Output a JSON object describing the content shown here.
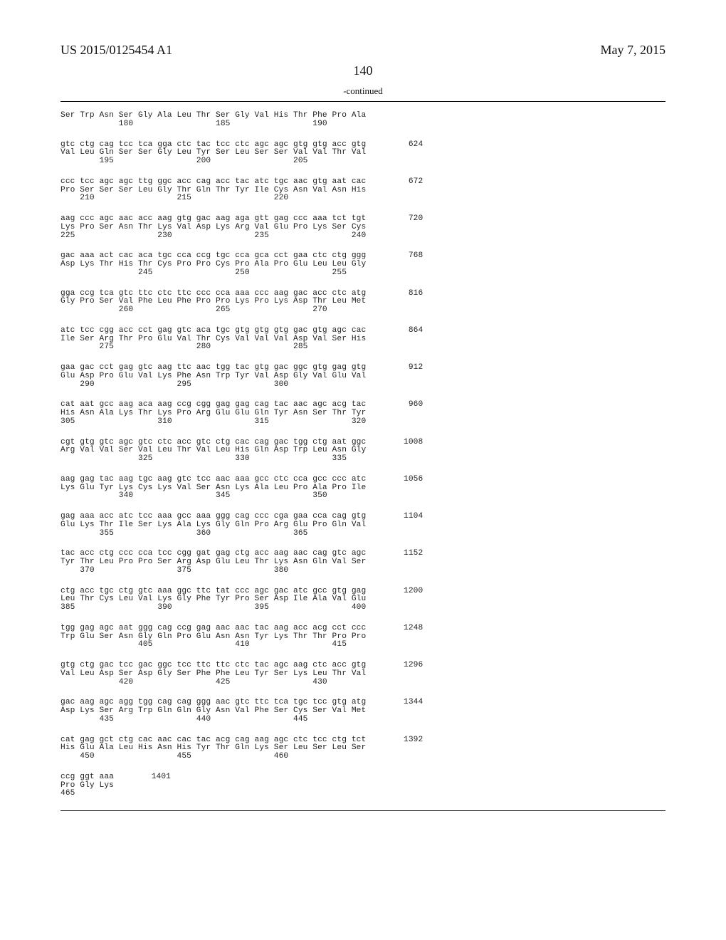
{
  "header": {
    "patent_no": "US 2015/0125454 A1",
    "date": "May 7, 2015"
  },
  "page_number": "140",
  "continued_label": "-continued",
  "font": {
    "body_family": "Times New Roman",
    "seq_family": "Courier New",
    "header_fontsize_pt": 14,
    "pagenum_fontsize_pt": 14,
    "continued_fontsize_pt": 10,
    "seq_fontsize_pt": 8
  },
  "colors": {
    "background": "#ffffff",
    "text": "#111111",
    "rule": "#000000"
  },
  "blocks": [
    {
      "codon": "",
      "amino": "Ser Trp Asn Ser Gly Ala Leu Thr Ser Gly Val His Thr Phe Pro Ala",
      "positions": "            180                 185                 190",
      "right_num": ""
    },
    {
      "codon": "gtc ctg cag tcc tca gga ctc tac tcc ctc agc agc gtg gtg acc gtg",
      "amino": "Val Leu Gln Ser Ser Gly Leu Tyr Ser Leu Ser Ser Val Val Thr Val",
      "positions": "        195                 200                 205",
      "right_num": "624"
    },
    {
      "codon": "ccc tcc agc agc ttg ggc acc cag acc tac atc tgc aac gtg aat cac",
      "amino": "Pro Ser Ser Ser Leu Gly Thr Gln Thr Tyr Ile Cys Asn Val Asn His",
      "positions": "    210                 215                 220",
      "right_num": "672"
    },
    {
      "codon": "aag ccc agc aac acc aag gtg gac aag aga gtt gag ccc aaa tct tgt",
      "amino": "Lys Pro Ser Asn Thr Lys Val Asp Lys Arg Val Glu Pro Lys Ser Cys",
      "positions": "225                 230                 235                 240",
      "right_num": "720"
    },
    {
      "codon": "gac aaa act cac aca tgc cca ccg tgc cca gca cct gaa ctc ctg ggg",
      "amino": "Asp Lys Thr His Thr Cys Pro Pro Cys Pro Ala Pro Glu Leu Leu Gly",
      "positions": "                245                 250                 255",
      "right_num": "768"
    },
    {
      "codon": "gga ccg tca gtc ttc ctc ttc ccc cca aaa ccc aag gac acc ctc atg",
      "amino": "Gly Pro Ser Val Phe Leu Phe Pro Pro Lys Pro Lys Asp Thr Leu Met",
      "positions": "            260                 265                 270",
      "right_num": "816"
    },
    {
      "codon": "atc tcc cgg acc cct gag gtc aca tgc gtg gtg gtg gac gtg agc cac",
      "amino": "Ile Ser Arg Thr Pro Glu Val Thr Cys Val Val Val Asp Val Ser His",
      "positions": "        275                 280                 285",
      "right_num": "864"
    },
    {
      "codon": "gaa gac cct gag gtc aag ttc aac tgg tac gtg gac ggc gtg gag gtg",
      "amino": "Glu Asp Pro Glu Val Lys Phe Asn Trp Tyr Val Asp Gly Val Glu Val",
      "positions": "    290                 295                 300",
      "right_num": "912"
    },
    {
      "codon": "cat aat gcc aag aca aag ccg cgg gag gag cag tac aac agc acg tac",
      "amino": "His Asn Ala Lys Thr Lys Pro Arg Glu Glu Gln Tyr Asn Ser Thr Tyr",
      "positions": "305                 310                 315                 320",
      "right_num": "960"
    },
    {
      "codon": "cgt gtg gtc agc gtc ctc acc gtc ctg cac cag gac tgg ctg aat ggc",
      "amino": "Arg Val Val Ser Val Leu Thr Val Leu His Gln Asp Trp Leu Asn Gly",
      "positions": "                325                 330                 335",
      "right_num": "1008"
    },
    {
      "codon": "aag gag tac aag tgc aag gtc tcc aac aaa gcc ctc cca gcc ccc atc",
      "amino": "Lys Glu Tyr Lys Cys Lys Val Ser Asn Lys Ala Leu Pro Ala Pro Ile",
      "positions": "            340                 345                 350",
      "right_num": "1056"
    },
    {
      "codon": "gag aaa acc atc tcc aaa gcc aaa ggg cag ccc cga gaa cca cag gtg",
      "amino": "Glu Lys Thr Ile Ser Lys Ala Lys Gly Gln Pro Arg Glu Pro Gln Val",
      "positions": "        355                 360                 365",
      "right_num": "1104"
    },
    {
      "codon": "tac acc ctg ccc cca tcc cgg gat gag ctg acc aag aac cag gtc agc",
      "amino": "Tyr Thr Leu Pro Pro Ser Arg Asp Glu Leu Thr Lys Asn Gln Val Ser",
      "positions": "    370                 375                 380",
      "right_num": "1152"
    },
    {
      "codon": "ctg acc tgc ctg gtc aaa ggc ttc tat ccc agc gac atc gcc gtg gag",
      "amino": "Leu Thr Cys Leu Val Lys Gly Phe Tyr Pro Ser Asp Ile Ala Val Glu",
      "positions": "385                 390                 395                 400",
      "right_num": "1200"
    },
    {
      "codon": "tgg gag agc aat ggg cag ccg gag aac aac tac aag acc acg cct ccc",
      "amino": "Trp Glu Ser Asn Gly Gln Pro Glu Asn Asn Tyr Lys Thr Thr Pro Pro",
      "positions": "                405                 410                 415",
      "right_num": "1248"
    },
    {
      "codon": "gtg ctg gac tcc gac ggc tcc ttc ttc ctc tac agc aag ctc acc gtg",
      "amino": "Val Leu Asp Ser Asp Gly Ser Phe Phe Leu Tyr Ser Lys Leu Thr Val",
      "positions": "            420                 425                 430",
      "right_num": "1296"
    },
    {
      "codon": "gac aag agc agg tgg cag cag ggg aac gtc ttc tca tgc tcc gtg atg",
      "amino": "Asp Lys Ser Arg Trp Gln Gln Gly Asn Val Phe Ser Cys Ser Val Met",
      "positions": "        435                 440                 445",
      "right_num": "1344"
    },
    {
      "codon": "cat gag gct ctg cac aac cac tac acg cag aag agc ctc tcc ctg tct",
      "amino": "His Glu Ala Leu His Asn His Tyr Thr Gln Lys Ser Leu Ser Leu Ser",
      "positions": "    450                 455                 460",
      "right_num": "1392"
    },
    {
      "codon": "ccg ggt aaa",
      "amino": "Pro Gly Lys",
      "positions": "465",
      "right_num": "1401"
    }
  ]
}
